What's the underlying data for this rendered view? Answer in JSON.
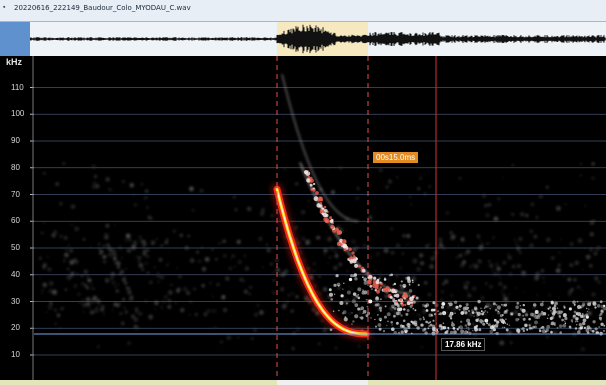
{
  "window": {
    "title": "20220616_222149_Baudour_Colo_MYODAU_C.wav",
    "system_icon": "window-menu-icon"
  },
  "spectrogram": {
    "axis_unit": "kHz",
    "y_ticks": [
      "110",
      "100",
      "90",
      "80",
      "70",
      "60",
      "50",
      "40",
      "30",
      "20",
      "10"
    ],
    "duration_label": "00s15.0ms",
    "frequency_label": "17.86 kHz",
    "colors": {
      "grid": "#5a6f9a",
      "cursor_dashed": "#e05050",
      "cursor_solid": "#d63030",
      "call_outer": "#ff2a1a",
      "call_inner": "#ffd01a",
      "duration_badge": "#e38b23"
    }
  },
  "waveform": {
    "selection_color": "#f6e9bf"
  }
}
